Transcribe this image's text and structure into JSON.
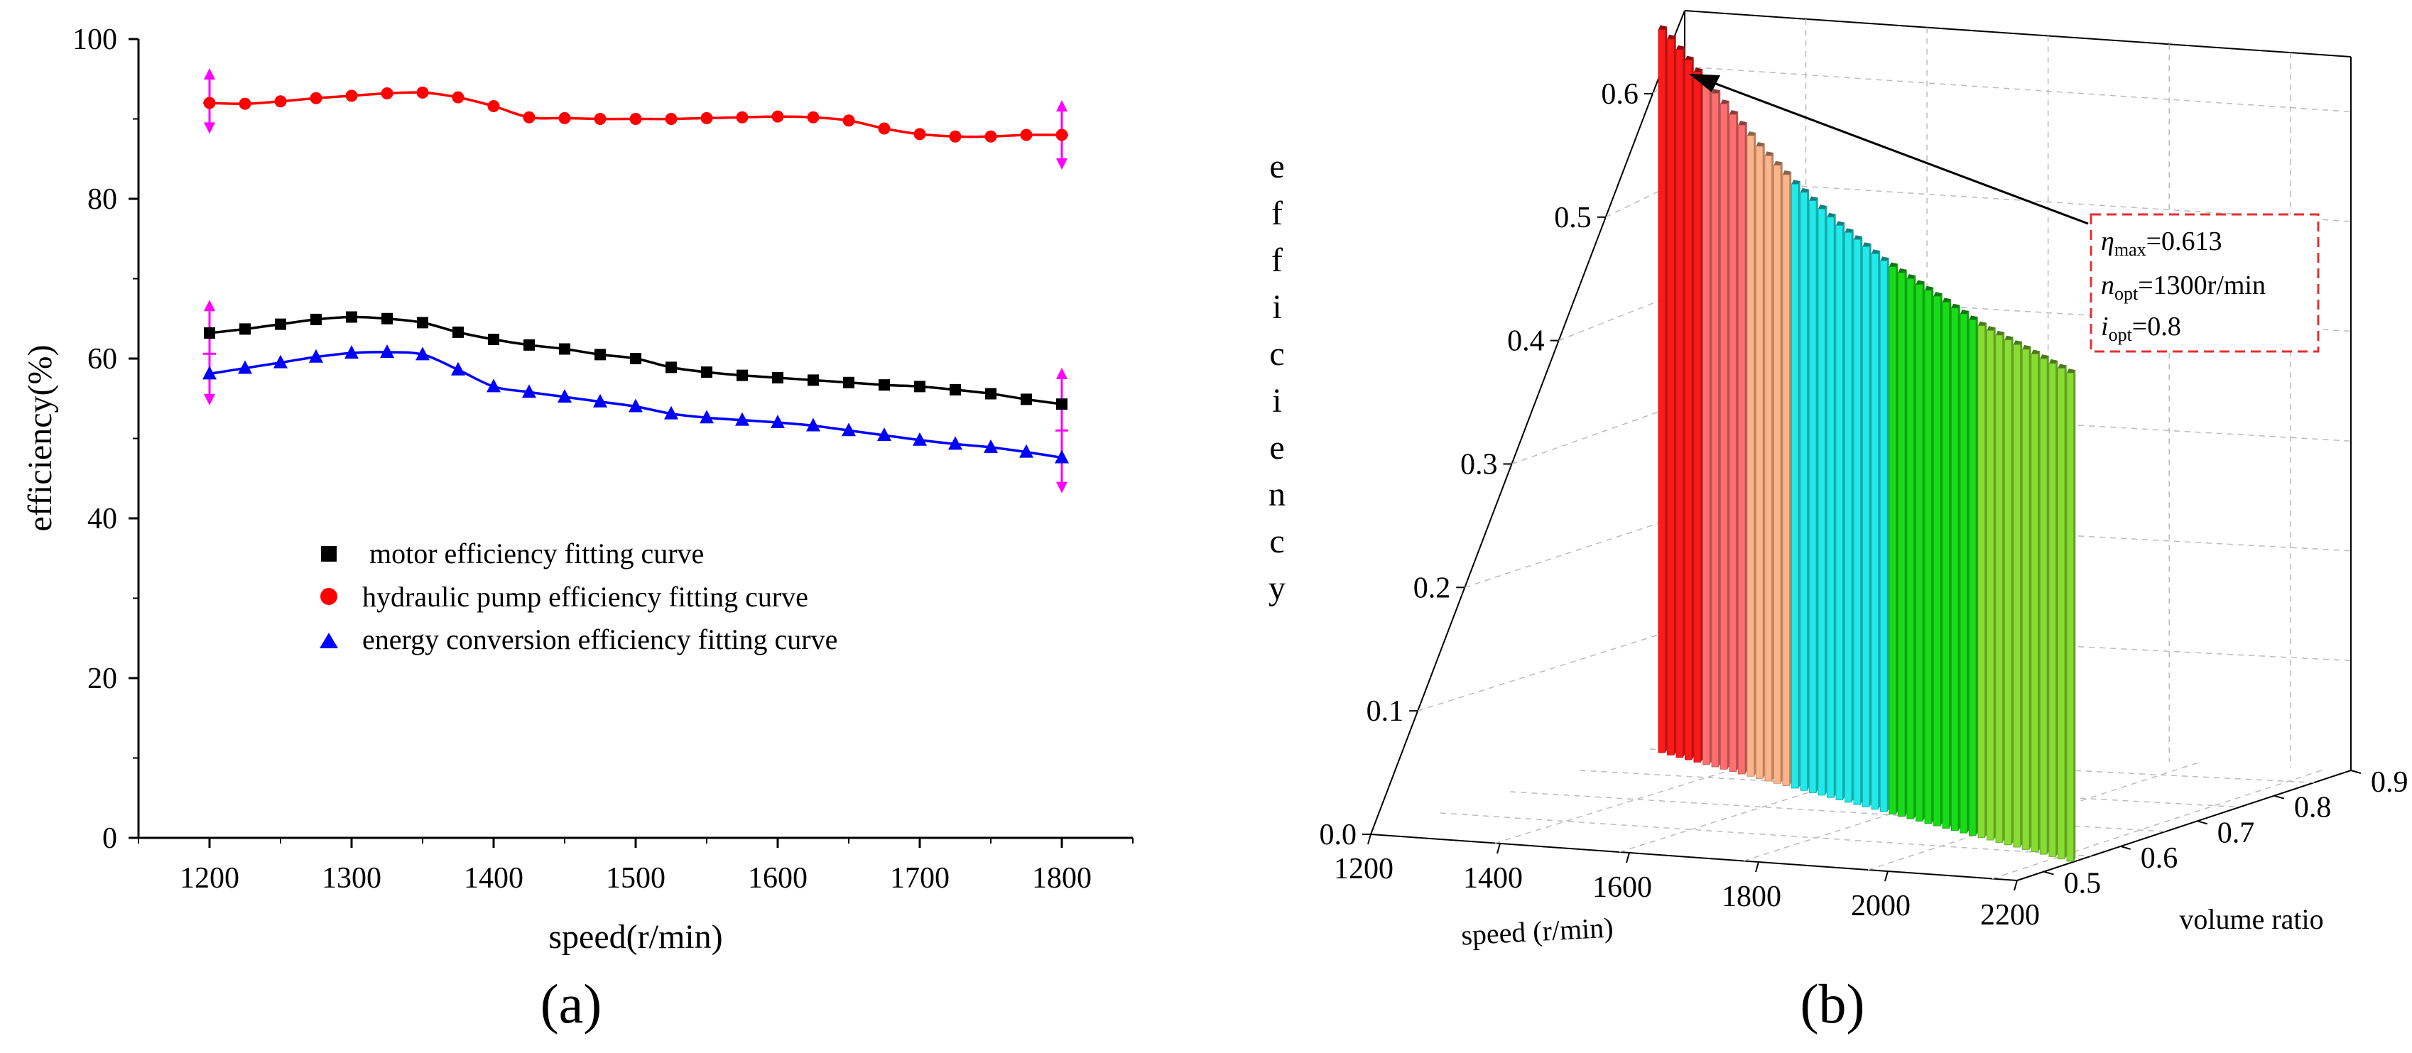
{
  "chart_data": [
    {
      "panel_label": "(a)",
      "type": "line",
      "xlabel": "speed(r/min)",
      "ylabel": "efficiency(%)",
      "xlim": [
        1150,
        1850
      ],
      "ylim": [
        0,
        100
      ],
      "x_ticks": [
        1200,
        1300,
        1400,
        1500,
        1600,
        1700,
        1800
      ],
      "y_ticks": [
        0,
        20,
        40,
        60,
        80,
        100
      ],
      "x": [
        1200,
        1225,
        1250,
        1275,
        1300,
        1325,
        1350,
        1375,
        1400,
        1425,
        1450,
        1475,
        1500,
        1525,
        1550,
        1575,
        1600,
        1625,
        1650,
        1675,
        1700,
        1725,
        1750,
        1775,
        1800
      ],
      "series": [
        {
          "name": " motor efficiency fitting curve",
          "marker": "square",
          "color": "#000000",
          "values": [
            63.2,
            63.7,
            64.3,
            64.9,
            65.2,
            65.0,
            64.5,
            63.3,
            62.4,
            61.7,
            61.2,
            60.5,
            60.0,
            58.9,
            58.3,
            57.9,
            57.6,
            57.3,
            57.0,
            56.7,
            56.5,
            56.1,
            55.6,
            54.9,
            54.3
          ]
        },
        {
          "name": "hydraulic pump efficiency fitting curve",
          "marker": "circle",
          "color": "#ff0000",
          "values": [
            92.0,
            91.9,
            92.2,
            92.6,
            92.9,
            93.2,
            93.3,
            92.7,
            91.6,
            90.2,
            90.1,
            90.0,
            90.0,
            90.0,
            90.1,
            90.2,
            90.3,
            90.2,
            89.8,
            88.8,
            88.1,
            87.8,
            87.8,
            88.0,
            88.0
          ]
        },
        {
          "name": "energy conversion efficiency fitting curve",
          "marker": "triangle",
          "color": "#0000ff",
          "values": [
            58.1,
            58.8,
            59.5,
            60.2,
            60.7,
            60.8,
            60.5,
            58.6,
            56.5,
            55.8,
            55.2,
            54.6,
            54.0,
            53.1,
            52.6,
            52.3,
            52.0,
            51.6,
            51.0,
            50.4,
            49.8,
            49.3,
            48.9,
            48.3,
            47.6
          ]
        }
      ],
      "error_bars": [
        {
          "x": 1200,
          "center": 92.0,
          "low": 88.5,
          "high": 96.0
        },
        {
          "x": 1800,
          "center": 88.0,
          "low": 84.0,
          "high": 92.0
        },
        {
          "x": 1200,
          "center": 60.6,
          "low": 54.5,
          "high": 67.0
        },
        {
          "x": 1800,
          "center": 51.0,
          "low": 43.5,
          "high": 58.5
        }
      ],
      "error_bar_color": "#ff00ff"
    },
    {
      "panel_label": "(b)",
      "type": "bar3d",
      "xlabel": "speed (r/min)",
      "ylabel": "volume ratio",
      "zlabel": "efficiency",
      "x_ticks": [
        1200,
        1400,
        1600,
        1800,
        2000,
        2200
      ],
      "y_ticks": [
        0.5,
        0.6,
        0.7,
        0.8,
        0.9
      ],
      "z_ticks": [
        "0.0",
        "0.1",
        "0.2",
        "0.3",
        "0.4",
        "0.5",
        "0.6"
      ],
      "zlim": [
        0,
        0.65
      ],
      "speed_start": 1300,
      "speed_step": 20,
      "volume_ratio": 0.8,
      "values": [
        0.613,
        0.607,
        0.6,
        0.593,
        0.585,
        0.578,
        0.571,
        0.564,
        0.557,
        0.55,
        0.543,
        0.536,
        0.53,
        0.524,
        0.518,
        0.512,
        0.507,
        0.502,
        0.497,
        0.492,
        0.487,
        0.483,
        0.479,
        0.475,
        0.471,
        0.467,
        0.464,
        0.461,
        0.458,
        0.455,
        0.452,
        0.449,
        0.446,
        0.443,
        0.44,
        0.437,
        0.434,
        0.432,
        0.43,
        0.428,
        0.426,
        0.424,
        0.422,
        0.42,
        0.418,
        0.416,
        0.414
      ],
      "bar_color_groups": [
        {
          "count": 5,
          "color": "#ff1a1a"
        },
        {
          "count": 5,
          "color": "#ff6f6f"
        },
        {
          "count": 5,
          "color": "#ffb48a"
        },
        {
          "count": 11,
          "color": "#22eaea"
        },
        {
          "count": 10,
          "color": "#19dc19"
        },
        {
          "count": 11,
          "color": "#88dd33"
        }
      ],
      "annotation": {
        "eta_symbol": "η",
        "eta_sub": "max",
        "eta_value": "=0.613",
        "n_symbol": "n",
        "n_sub": "opt",
        "n_value": "=1300r/min",
        "i_symbol": "i",
        "i_sub": "opt",
        "i_value": "=0.8",
        "border_color": "#e03030"
      }
    }
  ]
}
